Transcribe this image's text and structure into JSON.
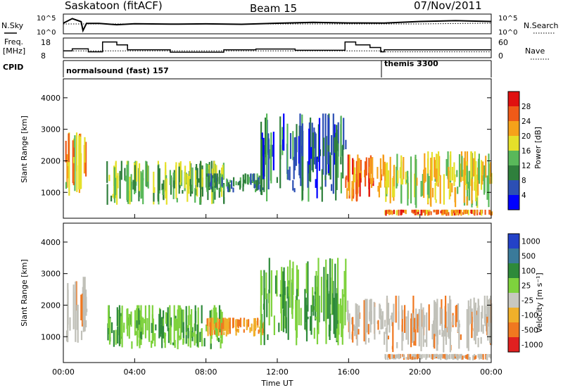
{
  "header": {
    "station": "Saskatoon (fitACF)",
    "beam": "Beam 15",
    "date": "07/Nov/2011"
  },
  "panel_labels": {
    "nsky": "N.Sky",
    "nsky_ticks": [
      "10^5",
      "10^0"
    ],
    "nsearch": "N.Search",
    "nsearch_ticks": [
      "10^5",
      "10^0"
    ],
    "freq_line1": "Freq.",
    "freq_line2": "[MHz]",
    "freq_ticks": [
      "18",
      "8"
    ],
    "nave": "Nave",
    "nave_ticks": [
      "60",
      "0"
    ],
    "cpid": "CPID",
    "mode1": "normalsound (fast) 157",
    "mode2": "themis 3300"
  },
  "colors": {
    "power_scale": [
      "#0000ff",
      "#2c4fb4",
      "#2f7f3c",
      "#59b85a",
      "#e5e02a",
      "#f6a21a",
      "#ef5a18",
      "#e01010"
    ],
    "velocity_scale": [
      "#2342c8",
      "#3a7a9a",
      "#2e8a3a",
      "#7ed23d",
      "#c8c8c0",
      "#f0b02a",
      "#f07820",
      "#e02020"
    ],
    "ground_scatter": "#c0c0b8"
  },
  "chart_data": [
    {
      "type": "line",
      "title": "",
      "panel": "N.Sky / N.Search",
      "x": [
        0,
        0.5,
        1,
        1.1,
        1.3,
        2,
        3,
        4,
        6,
        8,
        10,
        12,
        14,
        16,
        18,
        20,
        22,
        24
      ],
      "series": [
        {
          "name": "N.Sky",
          "values": [
            3.0,
            3.6,
            3.2,
            1.0,
            2.5,
            2.6,
            2.4,
            2.4,
            2.3,
            2.5,
            2.3,
            2.6,
            2.7,
            2.9,
            2.8,
            3.0,
            3.2,
            3.4
          ]
        },
        {
          "name": "N.Search",
          "values": [
            2.5,
            2.5,
            2.5,
            2.5,
            2.5,
            2.5,
            2.5,
            2.5,
            2.5,
            2.5,
            2.5,
            2.5,
            2.5,
            2.5,
            2.5,
            2.5,
            2.6,
            2.7
          ]
        }
      ],
      "ylim": [
        0,
        5
      ],
      "y_scale": "log"
    },
    {
      "type": "line",
      "panel": "Freq / Nave",
      "x": [
        0,
        0.5,
        1.4,
        2.2,
        3.0,
        3.6,
        6.0,
        9.0,
        10.8,
        13.0,
        15.8,
        16.4,
        17.2,
        17.8,
        18.0,
        24.0
      ],
      "series": [
        {
          "name": "Freq.",
          "values": [
            11.5,
            12.5,
            11.0,
            16.0,
            14.5,
            12.0,
            10.8,
            12.0,
            12.4,
            11.8,
            16.0,
            14.5,
            13.2,
            11.0,
            12.0,
            12.0
          ]
        },
        {
          "name": "Nave",
          "values": [
            21,
            21,
            21,
            21,
            21,
            21,
            21,
            21,
            21,
            21,
            21,
            21,
            21,
            21,
            18,
            18
          ]
        }
      ],
      "ylim_freq": [
        8,
        18
      ],
      "ylim_nave": [
        0,
        60
      ]
    },
    {
      "type": "heatmap",
      "panel": "Power",
      "xlabel": "",
      "ylabel": "Slant Range [km]",
      "xlim": [
        0,
        24
      ],
      "ylim": [
        180,
        4600
      ],
      "yticks": [
        1000,
        2000,
        3000,
        4000
      ],
      "colorbar_label": "Power [dB]",
      "colorbar_ticks": [
        "4",
        "8",
        "12",
        "16",
        "20",
        "24",
        "28"
      ],
      "features": [
        {
          "t0": 0.1,
          "t1": 1.3,
          "r0": 800,
          "r1": 2900,
          "power": 22
        },
        {
          "t0": 2.4,
          "t1": 9.0,
          "r0": 600,
          "r1": 2000,
          "power": 16
        },
        {
          "t0": 8.0,
          "t1": 11.2,
          "r0": 1000,
          "r1": 1600,
          "power": 12
        },
        {
          "t0": 11.0,
          "t1": 15.8,
          "r0": 700,
          "r1": 3500,
          "power": 10
        },
        {
          "t0": 15.8,
          "t1": 18.0,
          "r0": 700,
          "r1": 2200,
          "power": 26
        },
        {
          "t0": 18.0,
          "t1": 24.0,
          "r0": 500,
          "r1": 2300,
          "power": 20
        },
        {
          "t0": 18.0,
          "t1": 24.0,
          "r0": 250,
          "r1": 450,
          "power": 26
        }
      ]
    },
    {
      "type": "heatmap",
      "panel": "Velocity",
      "xlabel": "Time UT",
      "ylabel": "Slant Range [km]",
      "xlim": [
        0,
        24
      ],
      "ylim": [
        180,
        4600
      ],
      "yticks": [
        1000,
        2000,
        3000,
        4000
      ],
      "xticks": [
        "00:00",
        "04:00",
        "08:00",
        "12:00",
        "16:00",
        "20:00",
        "00:00"
      ],
      "colorbar_label": "Velocity [m s⁻¹]",
      "colorbar_ticks": [
        "1000",
        "500",
        "100",
        "25",
        "-25",
        "-100",
        "-500",
        "-1000"
      ],
      "features": [
        {
          "t0": 0.1,
          "t1": 1.3,
          "r0": 800,
          "r1": 2900,
          "velocity": 0
        },
        {
          "t0": 2.4,
          "t1": 9.0,
          "r0": 600,
          "r1": 2000,
          "velocity": 80
        },
        {
          "t0": 8.0,
          "t1": 11.2,
          "r0": 1000,
          "r1": 1600,
          "velocity": -120
        },
        {
          "t0": 11.0,
          "t1": 15.8,
          "r0": 700,
          "r1": 3500,
          "velocity": 60
        },
        {
          "t0": 15.8,
          "t1": 18.0,
          "r0": 700,
          "r1": 2200,
          "velocity": 0
        },
        {
          "t0": 18.0,
          "t1": 24.0,
          "r0": 500,
          "r1": 2300,
          "velocity": 0
        },
        {
          "t0": 18.0,
          "t1": 24.0,
          "r0": 250,
          "r1": 450,
          "velocity": 0
        }
      ]
    }
  ]
}
